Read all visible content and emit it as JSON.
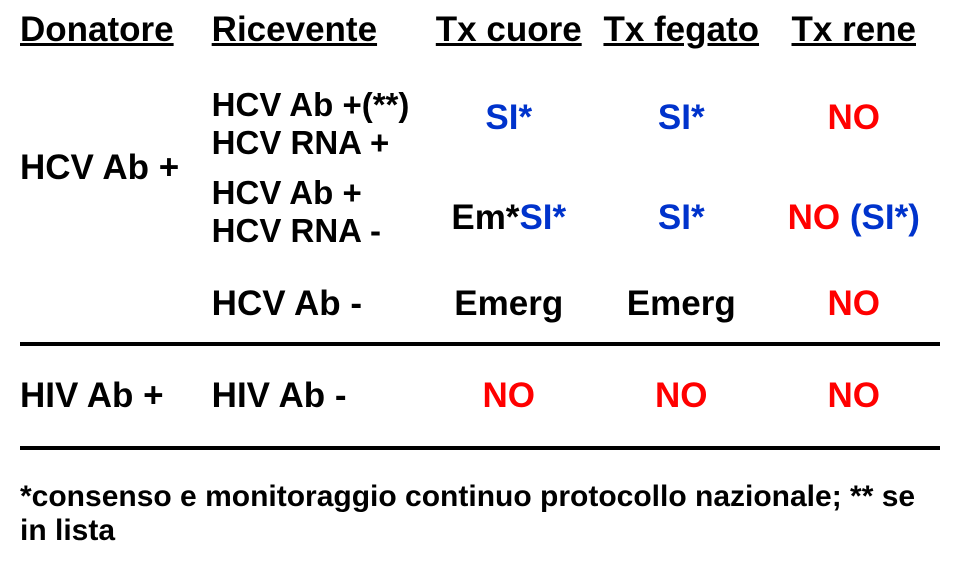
{
  "headers": {
    "donor": "Donatore",
    "receiver": "Ricevente",
    "heart": "Tx cuore",
    "liver": "Tx fegato",
    "kidney": "Tx rene"
  },
  "hcv": {
    "donor": "HCV Ab +",
    "row1": {
      "receiver_line1": "HCV Ab +(**)",
      "receiver_line2": "HCV RNA +",
      "heart": "SI*",
      "liver": "SI*",
      "kidney": "NO"
    },
    "row2": {
      "receiver_line1": "HCV Ab +",
      "receiver_line2": "HCV RNA -",
      "heart_prefix": "Em*",
      "heart_suffix": "SI*",
      "liver": "SI*",
      "kidney_prefix": "NO ",
      "kidney_suffix": "(SI*)"
    },
    "row3": {
      "receiver": "HCV Ab -",
      "heart": "Emerg",
      "liver": "Emerg",
      "kidney": "NO"
    }
  },
  "hiv": {
    "donor": "HIV Ab +",
    "receiver": "HIV Ab -",
    "heart": "NO",
    "liver": "NO",
    "kidney": "NO"
  },
  "footnote": "*consenso e monitoraggio continuo protocollo nazionale; ** se in lista",
  "colors": {
    "blue": "#0033cc",
    "red": "#ff0000",
    "black": "#000000"
  }
}
